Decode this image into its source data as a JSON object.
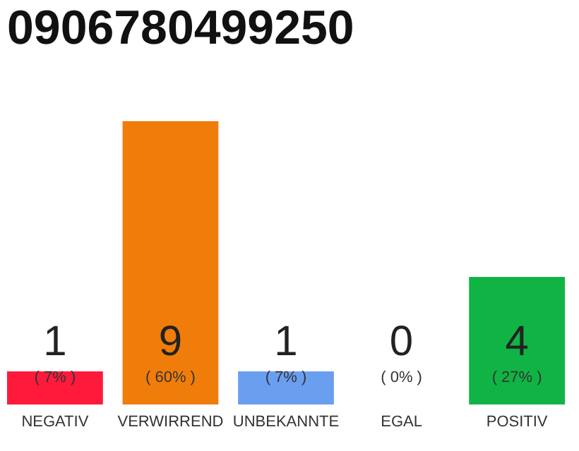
{
  "chart_data": {
    "type": "bar",
    "title": "0906780499250",
    "categories": [
      "NEGATIV",
      "VERWIRREND",
      "UNBEKANNTE",
      "EGAL",
      "POSITIV"
    ],
    "values": [
      7,
      60,
      7,
      0,
      27
    ],
    "colors": [
      "#ff1a3c",
      "#f07d0a",
      "#6a9ff0",
      "#aaaaaa",
      "#10b444"
    ],
    "value_labels": [
      "( 7% )",
      "( 60% )",
      "( 7% )",
      "( 0% )",
      "( 27% )"
    ],
    "annotations": [
      "1",
      "9",
      "1",
      "0",
      "4"
    ],
    "grid": false
  }
}
